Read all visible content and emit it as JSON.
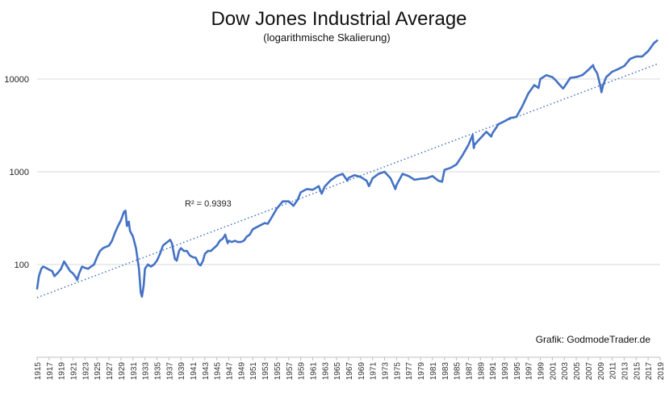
{
  "chart_data": {
    "type": "line",
    "title": "Dow Jones Industrial Average",
    "subtitle": "(logarithmische Skalierung)",
    "y_scale": "log",
    "ylim": [
      10,
      30000
    ],
    "y_ticks": [
      {
        "value": 100,
        "label": "100"
      },
      {
        "value": 1000,
        "label": "1000"
      },
      {
        "value": 10000,
        "label": "10000"
      }
    ],
    "xlim": [
      1915,
      2019
    ],
    "x_tick_labels": [
      "1915",
      "1917",
      "1919",
      "1921",
      "1923",
      "1925",
      "1927",
      "1929",
      "1931",
      "1933",
      "1935",
      "1937",
      "1939",
      "1941",
      "1943",
      "1945",
      "1947",
      "1949",
      "1951",
      "1953",
      "1955",
      "1957",
      "1959",
      "1961",
      "1963",
      "1965",
      "1967",
      "1969",
      "1971",
      "1973",
      "1975",
      "1977",
      "1979",
      "1981",
      "1983",
      "1985",
      "1987",
      "1989",
      "1991",
      "1993",
      "1995",
      "1997",
      "1999",
      "2001",
      "2003",
      "2005",
      "2007",
      "2009",
      "2011",
      "2013",
      "2015",
      "2017",
      "2019"
    ],
    "grid": {
      "horizontal": true,
      "vertical": false
    },
    "series": [
      {
        "color": "#4472c4",
        "x": [
          1915.0,
          1915.3,
          1915.7,
          1916.0,
          1916.5,
          1917.0,
          1917.5,
          1917.9,
          1918.5,
          1919.0,
          1919.5,
          1919.9,
          1920.5,
          1921.0,
          1921.5,
          1921.7,
          1922.0,
          1922.5,
          1923.0,
          1923.5,
          1924.0,
          1924.5,
          1925.0,
          1925.5,
          1926.0,
          1926.5,
          1927.0,
          1927.5,
          1928.0,
          1928.5,
          1929.0,
          1929.5,
          1929.75,
          1930.0,
          1930.3,
          1930.5,
          1931.0,
          1931.5,
          1932.0,
          1932.3,
          1932.5,
          1932.8,
          1933.0,
          1933.5,
          1934.0,
          1934.5,
          1935.0,
          1935.5,
          1936.0,
          1936.5,
          1937.0,
          1937.2,
          1937.5,
          1938.0,
          1938.3,
          1938.7,
          1939.0,
          1939.5,
          1940.0,
          1940.5,
          1941.0,
          1941.5,
          1942.0,
          1942.3,
          1942.7,
          1943.0,
          1943.5,
          1944.0,
          1944.5,
          1945.0,
          1945.5,
          1946.0,
          1946.4,
          1946.8,
          1947.0,
          1947.5,
          1948.0,
          1948.5,
          1949.0,
          1949.5,
          1950.0,
          1950.5,
          1951.0,
          1952.0,
          1953.0,
          1953.5,
          1954.0,
          1955.0,
          1956.0,
          1957.0,
          1957.8,
          1958.0,
          1958.5,
          1959.0,
          1960.0,
          1961.0,
          1962.0,
          1962.5,
          1963.0,
          1964.0,
          1965.0,
          1966.0,
          1966.8,
          1967.0,
          1968.0,
          1969.0,
          1970.0,
          1970.4,
          1971.0,
          1972.0,
          1973.0,
          1974.0,
          1974.8,
          1975.0,
          1976.0,
          1977.0,
          1978.0,
          1979.0,
          1980.0,
          1981.0,
          1982.0,
          1982.6,
          1983.0,
          1984.0,
          1985.0,
          1986.0,
          1987.0,
          1987.7,
          1987.9,
          1988.0,
          1989.0,
          1990.0,
          1990.8,
          1991.0,
          1992.0,
          1993.0,
          1994.0,
          1995.0,
          1996.0,
          1997.0,
          1998.0,
          1998.7,
          1999.0,
          2000.0,
          2001.0,
          2001.7,
          2002.0,
          2002.8,
          2003.0,
          2004.0,
          2005.0,
          2006.0,
          2007.0,
          2007.8,
          2008.0,
          2008.5,
          2009.0,
          2009.2,
          2009.5,
          2010.0,
          2011.0,
          2012.0,
          2013.0,
          2014.0,
          2015.0,
          2016.0,
          2017.0,
          2018.0,
          2018.5
        ],
        "y": [
          55,
          75,
          90,
          95,
          92,
          88,
          85,
          75,
          82,
          90,
          108,
          98,
          85,
          80,
          72,
          68,
          80,
          95,
          92,
          90,
          95,
          100,
          120,
          140,
          150,
          155,
          160,
          180,
          220,
          260,
          300,
          370,
          380,
          260,
          290,
          230,
          200,
          150,
          90,
          50,
          45,
          60,
          90,
          100,
          95,
          100,
          110,
          130,
          160,
          170,
          180,
          185,
          170,
          115,
          110,
          140,
          150,
          140,
          140,
          125,
          120,
          118,
          100,
          98,
          110,
          130,
          140,
          140,
          150,
          160,
          180,
          190,
          210,
          170,
          180,
          175,
          180,
          175,
          175,
          180,
          200,
          210,
          240,
          260,
          280,
          275,
          310,
          400,
          480,
          480,
          430,
          450,
          500,
          600,
          650,
          640,
          700,
          580,
          690,
          810,
          900,
          950,
          800,
          860,
          920,
          880,
          800,
          700,
          850,
          950,
          1000,
          850,
          650,
          720,
          950,
          900,
          820,
          840,
          850,
          900,
          800,
          780,
          1050,
          1100,
          1200,
          1500,
          1950,
          2500,
          1800,
          1950,
          2300,
          2700,
          2400,
          2600,
          3250,
          3500,
          3800,
          3900,
          5100,
          7000,
          8600,
          8000,
          10000,
          11000,
          10500,
          9500,
          9000,
          7900,
          8200,
          10300,
          10500,
          11000,
          12500,
          14100,
          13000,
          11500,
          8500,
          7200,
          8700,
          10500,
          12000,
          12800,
          13800,
          16500,
          17500,
          17500,
          20000,
          24500,
          26000
        ]
      }
    ],
    "trendline": {
      "x_start": 1915.0,
      "y_start": 44,
      "x_end": 2018.5,
      "y_end": 14500,
      "style": "dotted"
    },
    "annotations": [
      "R² = 0.9393"
    ],
    "credit": "Grafik: GodmodeTrader.de"
  }
}
